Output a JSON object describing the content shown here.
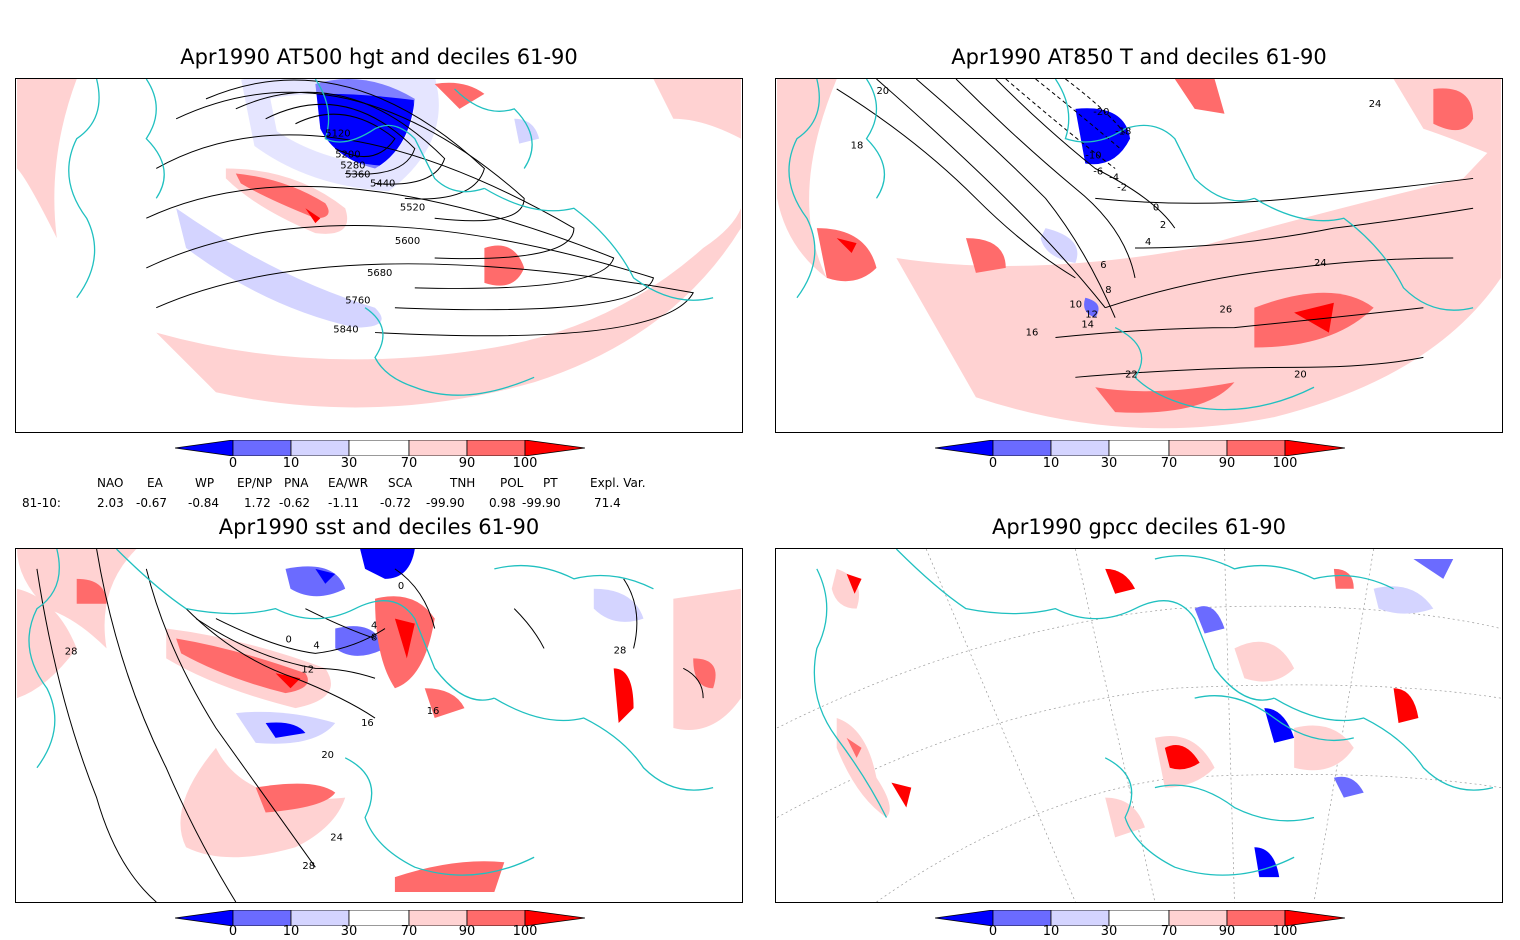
{
  "panels": [
    {
      "title": "Apr1990 AT500 hgt and deciles 61-90",
      "contour_labels": [
        "5120",
        "5200",
        "5280",
        "5360",
        "5440",
        "5520",
        "5600",
        "5680",
        "5760",
        "5840"
      ]
    },
    {
      "title": "Apr1990 AT850 T and deciles 61-90",
      "contour_labels": [
        "-20",
        "-18",
        "-10",
        "-6",
        "-4",
        "-2",
        "0",
        "2",
        "4",
        "6",
        "8",
        "10",
        "12",
        "14",
        "16",
        "18",
        "20",
        "22",
        "24",
        "26"
      ]
    },
    {
      "title": "Apr1990 sst and deciles 61-90",
      "contour_labels": [
        "0",
        "4",
        "8",
        "12",
        "16",
        "20",
        "24",
        "28"
      ]
    },
    {
      "title": "Apr1990 gpcc deciles 61-90",
      "contour_labels": []
    }
  ],
  "colorbar": {
    "ticks": [
      "0",
      "10",
      "30",
      "70",
      "90",
      "100"
    ],
    "colors": [
      "#0000ff",
      "#6b6bff",
      "#d4d4ff",
      "#ffffff",
      "#ffd2d2",
      "#ff6b6b",
      "#ff0000"
    ]
  },
  "indices": {
    "headers": [
      "NAO",
      "EA",
      "WP",
      "EP/NP",
      "PNA",
      "EA/WR",
      "SCA",
      "TNH",
      "POL",
      "PT",
      "Expl. Var."
    ],
    "row_label": "81-10:",
    "values": [
      "2.03",
      "-0.67",
      "-0.84",
      "1.72",
      "-0.62",
      "-1.11",
      "-0.72",
      "-99.90",
      "0.98",
      "-99.90",
      "71.4"
    ]
  },
  "colors": {
    "coast": "#20c0c0",
    "pink": "#ffd2d2",
    "red": "#ff5a5a",
    "deep_red": "#ff0000",
    "lavender": "#d4d4ff",
    "blue": "#0000ff"
  }
}
